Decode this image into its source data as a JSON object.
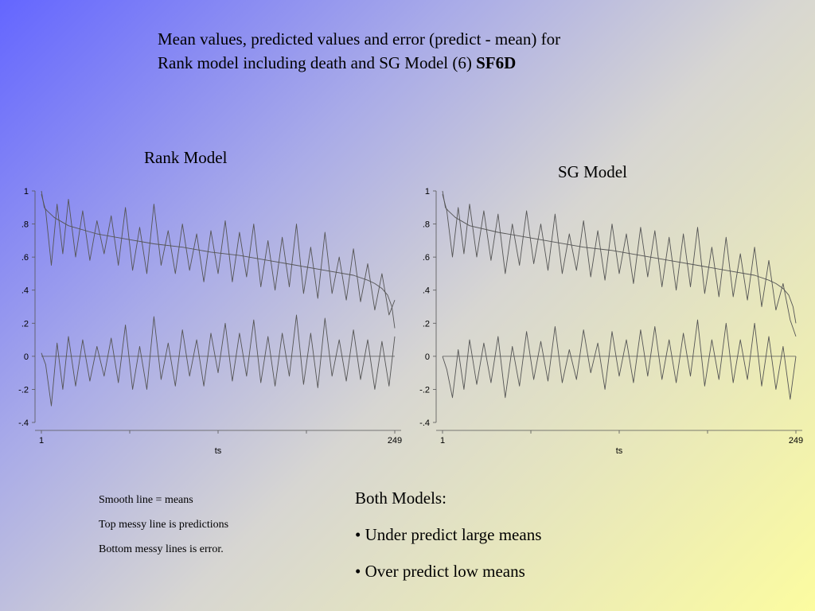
{
  "slide": {
    "title_line1": "Mean values, predicted values and error (predict - mean) for",
    "title_line2": "Rank model including death and SG Model (6)",
    "title_bold": "SF6D"
  },
  "notes": {
    "items": [
      "Smooth line = means",
      "Top messy line is predictions",
      "Bottom messy lines is error."
    ]
  },
  "conclusions": {
    "heading": "Both Models:",
    "bullets": [
      "• Under predict large means",
      "• Over predict low means"
    ]
  },
  "chart_data": [
    {
      "type": "line",
      "title": "Rank Model",
      "xlabel": "ts",
      "ylabel": "",
      "xlim": [
        1,
        249
      ],
      "ylim": [
        -0.4,
        1
      ],
      "x_ticks": [
        1,
        249
      ],
      "x_tick_labels": [
        "1",
        "249"
      ],
      "y_ticks": [
        -0.4,
        -0.2,
        0,
        0.2,
        0.4,
        0.6,
        0.8,
        1
      ],
      "y_tick_labels": [
        "-.4",
        "-.2",
        "0",
        ".2",
        ".4",
        ".6",
        ".8",
        "1"
      ],
      "grid": false,
      "legend": "none",
      "line_color": "#555555",
      "series": [
        {
          "role": "means",
          "x": [
            1,
            3,
            5,
            10,
            20,
            40,
            60,
            80,
            100,
            120,
            140,
            160,
            180,
            200,
            220,
            230,
            235,
            240,
            244,
            247,
            249
          ],
          "values": [
            1.0,
            0.9,
            0.88,
            0.84,
            0.79,
            0.74,
            0.71,
            0.68,
            0.66,
            0.63,
            0.61,
            0.58,
            0.55,
            0.52,
            0.49,
            0.46,
            0.44,
            0.41,
            0.37,
            0.3,
            0.17
          ]
        },
        {
          "role": "predictions",
          "x": [
            1,
            4,
            8,
            12,
            16,
            20,
            25,
            30,
            35,
            40,
            45,
            50,
            55,
            60,
            65,
            70,
            75,
            80,
            85,
            90,
            95,
            100,
            105,
            110,
            115,
            120,
            125,
            130,
            135,
            140,
            145,
            150,
            155,
            160,
            165,
            170,
            175,
            180,
            185,
            190,
            195,
            200,
            205,
            210,
            215,
            220,
            225,
            230,
            235,
            240,
            245,
            249
          ],
          "values": [
            0.98,
            0.88,
            0.55,
            0.92,
            0.62,
            0.95,
            0.6,
            0.88,
            0.58,
            0.82,
            0.62,
            0.85,
            0.55,
            0.9,
            0.52,
            0.78,
            0.5,
            0.92,
            0.55,
            0.76,
            0.5,
            0.8,
            0.52,
            0.74,
            0.45,
            0.76,
            0.5,
            0.82,
            0.45,
            0.75,
            0.48,
            0.8,
            0.42,
            0.7,
            0.4,
            0.72,
            0.42,
            0.8,
            0.38,
            0.66,
            0.35,
            0.75,
            0.38,
            0.6,
            0.34,
            0.65,
            0.33,
            0.56,
            0.28,
            0.5,
            0.25,
            0.34
          ]
        },
        {
          "role": "error",
          "x": [
            1,
            4,
            8,
            12,
            16,
            20,
            25,
            30,
            35,
            40,
            45,
            50,
            55,
            60,
            65,
            70,
            75,
            80,
            85,
            90,
            95,
            100,
            105,
            110,
            115,
            120,
            125,
            130,
            135,
            140,
            145,
            150,
            155,
            160,
            165,
            170,
            175,
            180,
            185,
            190,
            195,
            200,
            205,
            210,
            215,
            220,
            225,
            230,
            235,
            240,
            245,
            249
          ],
          "values": [
            0.02,
            -0.05,
            -0.3,
            0.08,
            -0.2,
            0.12,
            -0.18,
            0.1,
            -0.15,
            0.06,
            -0.12,
            0.11,
            -0.16,
            0.19,
            -0.2,
            0.06,
            -0.2,
            0.24,
            -0.14,
            0.08,
            -0.18,
            0.16,
            -0.12,
            0.1,
            -0.18,
            0.14,
            -0.1,
            0.2,
            -0.15,
            0.14,
            -0.12,
            0.22,
            -0.16,
            0.12,
            -0.18,
            0.14,
            -0.12,
            0.25,
            -0.17,
            0.14,
            -0.19,
            0.23,
            -0.12,
            0.1,
            -0.15,
            0.16,
            -0.14,
            0.1,
            -0.2,
            0.09,
            -0.18,
            0.12
          ]
        }
      ]
    },
    {
      "type": "line",
      "title": "SG Model",
      "xlabel": "ts",
      "ylabel": "",
      "xlim": [
        1,
        249
      ],
      "ylim": [
        -0.4,
        1
      ],
      "x_ticks": [
        1,
        249
      ],
      "x_tick_labels": [
        "1",
        "249"
      ],
      "y_ticks": [
        -0.4,
        -0.2,
        0,
        0.2,
        0.4,
        0.6,
        0.8,
        1
      ],
      "y_tick_labels": [
        "-.4",
        "-.2",
        "0",
        ".2",
        ".4",
        ".6",
        ".8",
        "1"
      ],
      "grid": false,
      "legend": "none",
      "line_color": "#555555",
      "series": [
        {
          "role": "means",
          "x": [
            1,
            3,
            5,
            10,
            20,
            40,
            60,
            80,
            100,
            120,
            140,
            160,
            180,
            200,
            220,
            230,
            235,
            240,
            244,
            247,
            249
          ],
          "values": [
            1.0,
            0.9,
            0.88,
            0.84,
            0.79,
            0.75,
            0.72,
            0.69,
            0.66,
            0.64,
            0.61,
            0.58,
            0.55,
            0.52,
            0.49,
            0.46,
            0.44,
            0.41,
            0.37,
            0.3,
            0.2
          ]
        },
        {
          "role": "predictions",
          "x": [
            1,
            4,
            8,
            12,
            16,
            20,
            25,
            30,
            35,
            40,
            45,
            50,
            55,
            60,
            65,
            70,
            75,
            80,
            85,
            90,
            95,
            100,
            105,
            110,
            115,
            120,
            125,
            130,
            135,
            140,
            145,
            150,
            155,
            160,
            165,
            170,
            175,
            180,
            185,
            190,
            195,
            200,
            205,
            210,
            215,
            220,
            225,
            230,
            235,
            240,
            245,
            249
          ],
          "values": [
            0.98,
            0.88,
            0.6,
            0.9,
            0.62,
            0.92,
            0.6,
            0.88,
            0.58,
            0.86,
            0.5,
            0.8,
            0.55,
            0.88,
            0.56,
            0.8,
            0.52,
            0.86,
            0.5,
            0.74,
            0.52,
            0.82,
            0.48,
            0.76,
            0.46,
            0.8,
            0.5,
            0.74,
            0.44,
            0.78,
            0.48,
            0.76,
            0.42,
            0.72,
            0.4,
            0.74,
            0.42,
            0.78,
            0.38,
            0.66,
            0.36,
            0.72,
            0.36,
            0.62,
            0.34,
            0.66,
            0.3,
            0.58,
            0.28,
            0.44,
            0.22,
            0.12
          ]
        },
        {
          "role": "error",
          "x": [
            1,
            4,
            8,
            12,
            16,
            20,
            25,
            30,
            35,
            40,
            45,
            50,
            55,
            60,
            65,
            70,
            75,
            80,
            85,
            90,
            95,
            100,
            105,
            110,
            115,
            120,
            125,
            130,
            135,
            140,
            145,
            150,
            155,
            160,
            165,
            170,
            175,
            180,
            185,
            190,
            195,
            200,
            205,
            210,
            215,
            220,
            225,
            230,
            235,
            240,
            245,
            249
          ],
          "values": [
            0.0,
            -0.08,
            -0.25,
            0.04,
            -0.2,
            0.1,
            -0.17,
            0.08,
            -0.16,
            0.12,
            -0.25,
            0.06,
            -0.18,
            0.15,
            -0.14,
            0.09,
            -0.15,
            0.18,
            -0.16,
            0.04,
            -0.14,
            0.16,
            -0.1,
            0.08,
            -0.2,
            0.15,
            -0.12,
            0.1,
            -0.16,
            0.16,
            -0.12,
            0.18,
            -0.14,
            0.1,
            -0.16,
            0.14,
            -0.12,
            0.22,
            -0.18,
            0.1,
            -0.14,
            0.2,
            -0.16,
            0.1,
            -0.14,
            0.2,
            -0.18,
            0.12,
            -0.2,
            0.06,
            -0.26,
            0.0
          ]
        }
      ]
    }
  ]
}
